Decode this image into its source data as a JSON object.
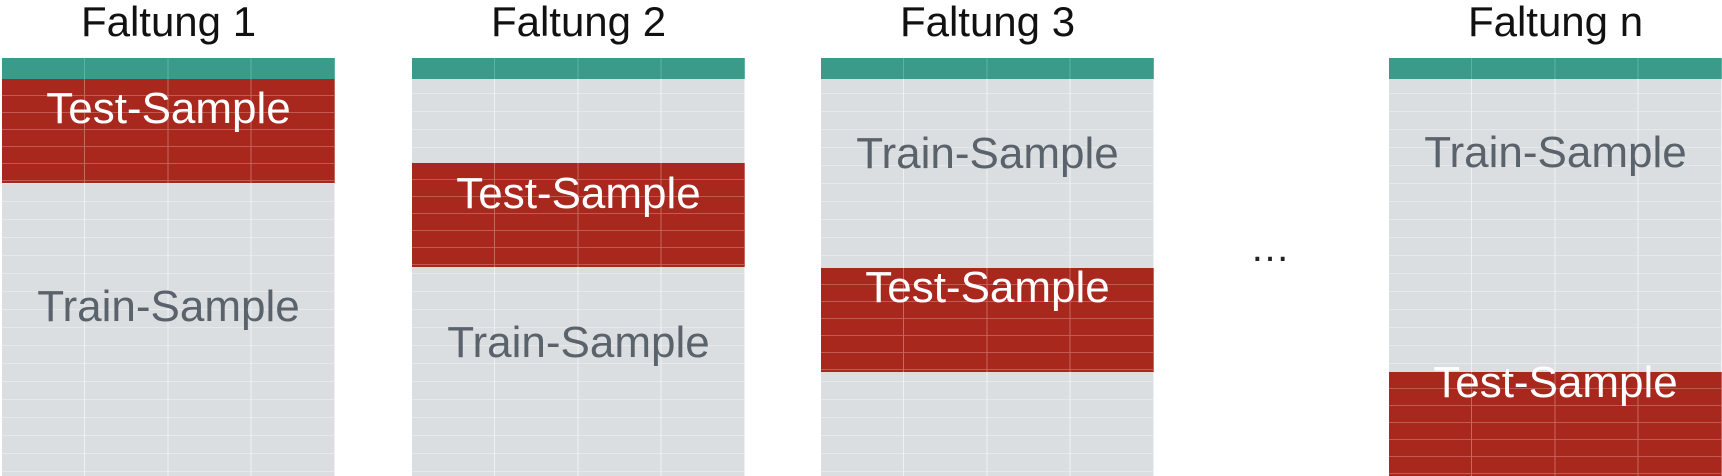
{
  "folds": [
    {
      "title": "Faltung 1",
      "test_label": "Test-Sample",
      "train_label": "Train-Sample"
    },
    {
      "title": "Faltung 2",
      "test_label": "Test-Sample",
      "train_label": "Train-Sample"
    },
    {
      "title": "Faltung 3",
      "test_label": "Test-Sample",
      "train_label": "Train-Sample"
    },
    {
      "title": "Faltung n",
      "test_label": "Test-Sample",
      "train_label": "Train-Sample"
    }
  ],
  "ellipsis": "…",
  "colors": {
    "header": "#3a9b8b",
    "test": "#a8281e",
    "train": "#dadee1",
    "train_text": "#5a636b"
  }
}
